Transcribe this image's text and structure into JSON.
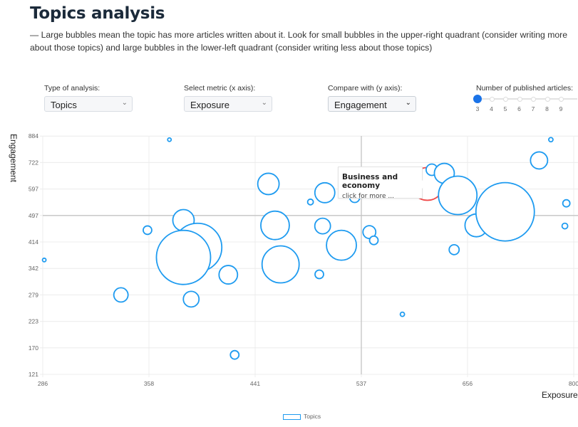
{
  "page": {
    "title": "Topics analysis",
    "description": "— Large bubbles mean the topic has more articles written about it. Look for small bubbles in the upper-right quadrant (consider writing more about those topics) and large bubbles in the lower-left quadrant (consider writing less about those topics)"
  },
  "controls": {
    "analysis": {
      "label": "Type of analysis:",
      "value": "Topics"
    },
    "x_metric": {
      "label": "Select metric (x axis):",
      "value": "Exposure"
    },
    "y_metric": {
      "label": "Compare with (y axis):",
      "value": "Engagement"
    },
    "articles_slider": {
      "label": "Number of published articles:",
      "value": 3,
      "ticks": [
        "3",
        "4",
        "5",
        "6",
        "7",
        "8",
        "9"
      ]
    }
  },
  "icons": {
    "select_chevron": "chevron-down-icon"
  },
  "colors": {
    "bubble": "#1e9bf0",
    "highlight": "#f04b4b",
    "slider": "#1a73e8"
  },
  "tooltip": {
    "title": "Business and economy",
    "subtitle": "click for more ..."
  },
  "chart_data": {
    "type": "bubble",
    "xlabel": "Exposure",
    "ylabel": "Engagement",
    "x_ticks": [
      286,
      358,
      441,
      537,
      656,
      800
    ],
    "y_ticks": [
      121,
      170,
      223,
      279,
      342,
      414,
      497,
      597,
      722,
      884
    ],
    "x_scale": "nonlinear",
    "quadrant_lines": {
      "x": 537,
      "y": 497
    },
    "grid": true,
    "legend": {
      "position": "bottom",
      "entries": [
        "Topics"
      ]
    },
    "series": [
      {
        "name": "Topics",
        "points": [
          {
            "x": 374,
            "y": 862,
            "size": 2.5
          },
          {
            "x": 287,
            "y": 365,
            "size": 2.5
          },
          {
            "x": 357,
            "y": 451,
            "size": 6
          },
          {
            "x": 339,
            "y": 279,
            "size": 10
          },
          {
            "x": 385,
            "y": 482,
            "size": 15
          },
          {
            "x": 396,
            "y": 399,
            "size": 34
          },
          {
            "x": 385,
            "y": 372,
            "size": 38
          },
          {
            "x": 420,
            "y": 327,
            "size": 13
          },
          {
            "x": 391,
            "y": 270,
            "size": 11
          },
          {
            "x": 425,
            "y": 157,
            "size": 6
          },
          {
            "x": 453,
            "y": 621,
            "size": 15
          },
          {
            "x": 459,
            "y": 466,
            "size": 20
          },
          {
            "x": 464,
            "y": 353,
            "size": 26
          },
          {
            "x": 769,
            "y": 862,
            "size": 3
          },
          {
            "x": 753,
            "y": 735,
            "size": 12
          },
          {
            "x": 504,
            "y": 583,
            "size": 14
          },
          {
            "x": 491,
            "y": 548,
            "size": 4
          },
          {
            "x": 531,
            "y": 565,
            "size": 7
          },
          {
            "x": 502,
            "y": 464,
            "size": 11
          },
          {
            "x": 519,
            "y": 405,
            "size": 21
          },
          {
            "x": 546,
            "y": 445,
            "size": 9
          },
          {
            "x": 551,
            "y": 419,
            "size": 6
          },
          {
            "x": 499,
            "y": 328,
            "size": 6
          },
          {
            "x": 583,
            "y": 238,
            "size": 3
          },
          {
            "x": 641,
            "y": 393,
            "size": 7
          },
          {
            "x": 616,
            "y": 688,
            "size": 8
          },
          {
            "x": 630,
            "y": 671,
            "size": 14
          },
          {
            "x": 611,
            "y": 621,
            "size": 23,
            "label": "Business and economy",
            "highlighted": true
          },
          {
            "x": 645,
            "y": 573,
            "size": 27
          },
          {
            "x": 668,
            "y": 466,
            "size": 16
          },
          {
            "x": 707,
            "y": 511,
            "size": 41
          },
          {
            "x": 790,
            "y": 543,
            "size": 5
          },
          {
            "x": 788,
            "y": 464,
            "size": 4
          }
        ]
      }
    ]
  }
}
